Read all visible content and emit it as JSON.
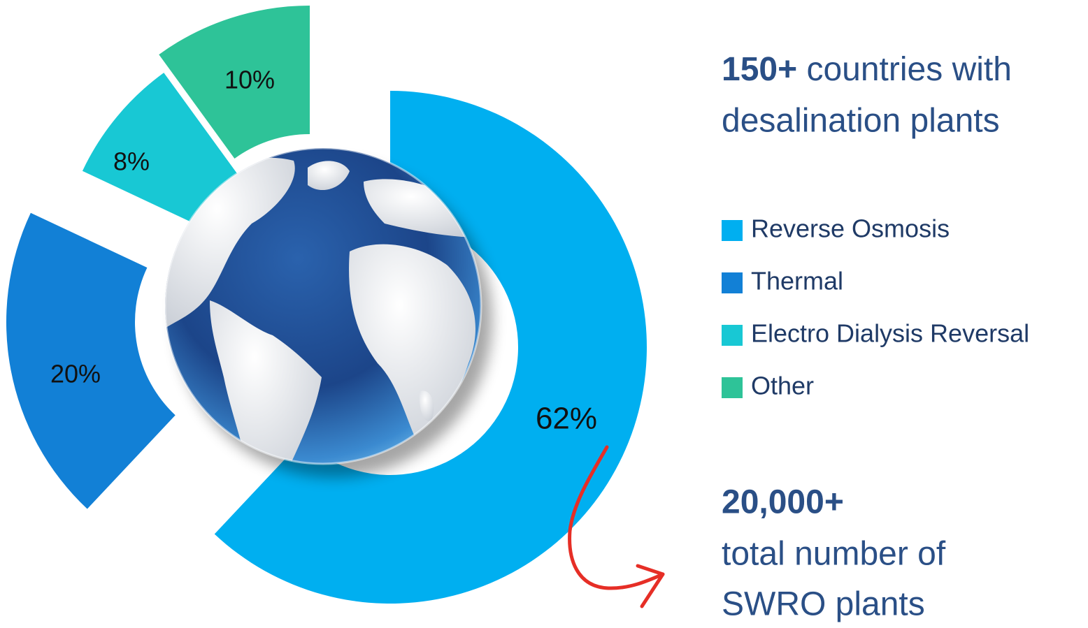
{
  "chart_data": {
    "type": "pie",
    "categories": [
      "Reverse Osmosis",
      "Thermal",
      "Electro Dialysis Reversal",
      "Other"
    ],
    "values": [
      62,
      20,
      8,
      10
    ],
    "value_labels": [
      "62%",
      "20%",
      "8%",
      "10%"
    ],
    "colors": [
      "#00aff0",
      "#1280d6",
      "#18c8d4",
      "#2ec398"
    ],
    "annotations": {
      "countries_bold": "150+",
      "countries_text_1": "countries with",
      "countries_text_2": "desalination plants",
      "plants_bold": "20,000+",
      "plants_text_1": "total number of",
      "plants_text_2": "SWRO plants"
    }
  }
}
